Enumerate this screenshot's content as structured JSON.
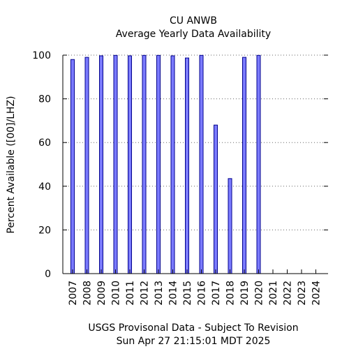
{
  "chart_data": {
    "type": "bar",
    "title": "CU ANWB",
    "subtitle": "Average Yearly Data Availability",
    "ylabel": "Percent Available ([00]/LHZ)",
    "xlabel": "",
    "footer_line1": "USGS Provisonal Data - Subject To Revision",
    "footer_line2": "Sun Apr 27 21:15:01 MDT 2025",
    "categories": [
      "2007",
      "2008",
      "2009",
      "2010",
      "2011",
      "2012",
      "2013",
      "2014",
      "2015",
      "2016",
      "2017",
      "2018",
      "2019",
      "2020",
      "2021",
      "2022",
      "2023",
      "2024"
    ],
    "values": [
      98,
      99,
      99.7,
      99.9,
      99.7,
      99.9,
      99.9,
      99.7,
      98.7,
      99.9,
      68,
      43.5,
      99,
      99.9,
      null,
      null,
      null,
      null
    ],
    "ylim": [
      0,
      100
    ],
    "yticks": [
      "0",
      "20",
      "40",
      "60",
      "80",
      "100"
    ],
    "grid": true,
    "bar_color": "#7b7bff",
    "bar_edge_color": "#00008b"
  }
}
